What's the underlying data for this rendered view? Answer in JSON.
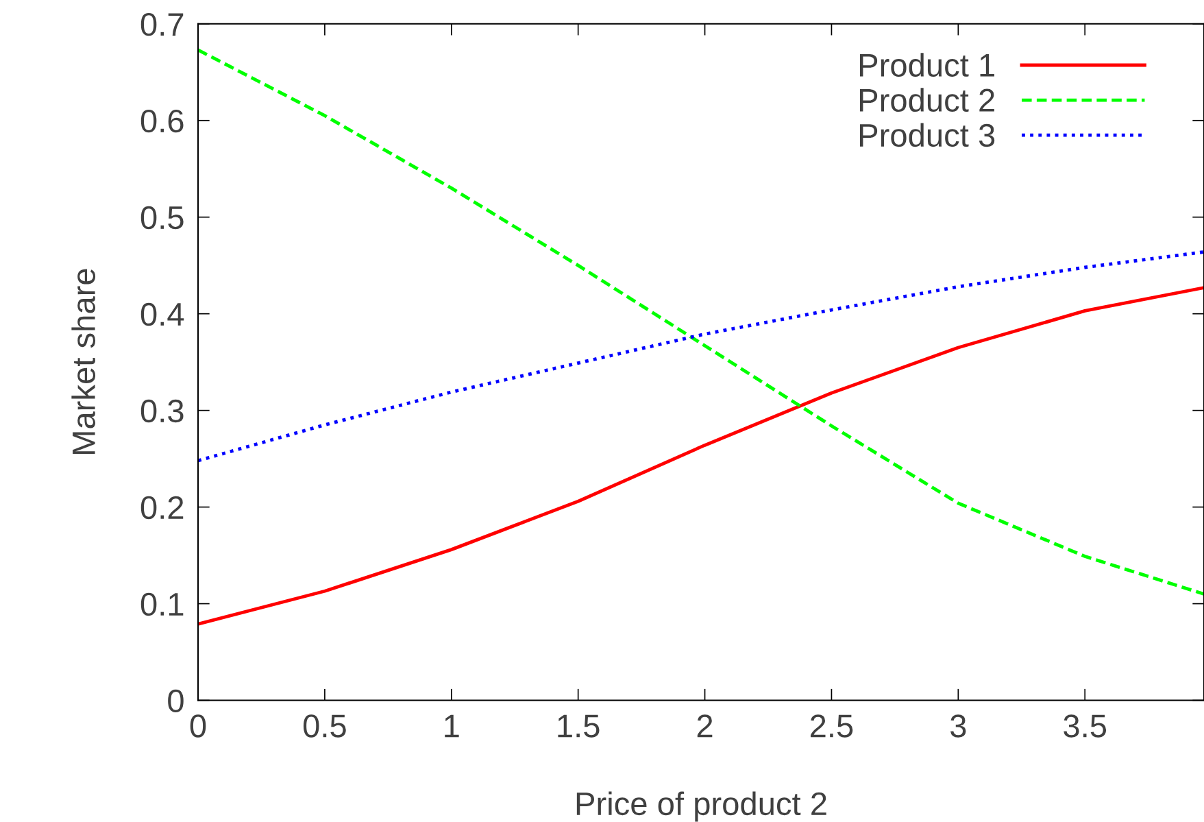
{
  "chart_data": {
    "type": "line",
    "xlabel": "Price of product 2",
    "ylabel": "Market share",
    "x": [
      0,
      0.5,
      1,
      1.5,
      2,
      2.5,
      3,
      3.5,
      3.97
    ],
    "series": [
      {
        "name": "Product 1",
        "color": "#ff0000",
        "line_style": "solid",
        "values": [
          0.079,
          0.113,
          0.156,
          0.206,
          0.264,
          0.318,
          0.365,
          0.403,
          0.427
        ]
      },
      {
        "name": "Product 2",
        "color": "#00ff00",
        "line_style": "dashed",
        "values": [
          0.673,
          0.605,
          0.53,
          0.45,
          0.367,
          0.284,
          0.204,
          0.149,
          0.11
        ]
      },
      {
        "name": "Product 3",
        "color": "#0000ff",
        "line_style": "dotted",
        "values": [
          0.248,
          0.285,
          0.319,
          0.349,
          0.379,
          0.404,
          0.428,
          0.448,
          0.464
        ]
      }
    ],
    "xlim": [
      0,
      3.97
    ],
    "xticks": [
      0,
      0.5,
      1,
      1.5,
      2,
      2.5,
      3,
      3.5
    ],
    "ylim": [
      0,
      0.7
    ],
    "yticks": [
      0,
      0.1,
      0.2,
      0.3,
      0.4,
      0.5,
      0.6,
      0.7
    ],
    "grid": false,
    "legend": "top right"
  }
}
